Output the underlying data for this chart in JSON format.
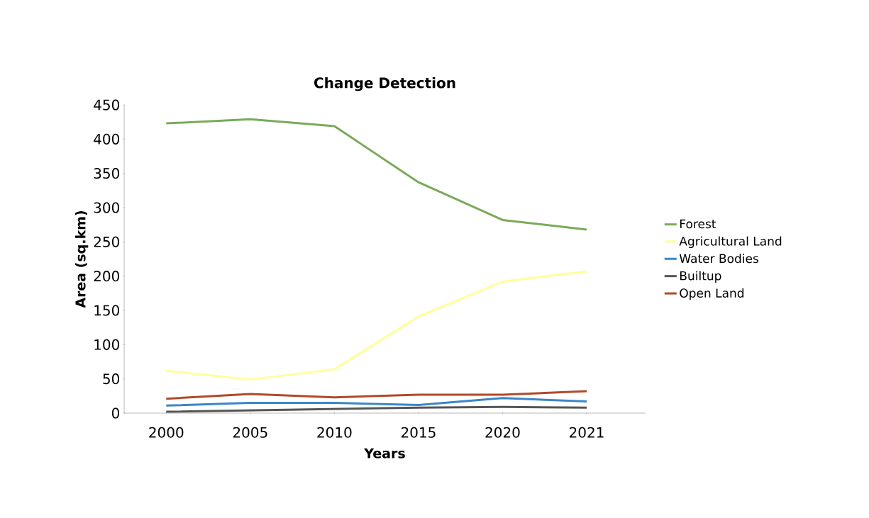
{
  "chart_data": {
    "type": "line",
    "title": "Change Detection",
    "xlabel": "Years",
    "ylabel": "Area (sq.km)",
    "categories": [
      "2000",
      "2005",
      "2010",
      "2015",
      "2020",
      "2021"
    ],
    "series": [
      {
        "name": "Forest",
        "color": "#7aaa5a",
        "values": [
          423,
          429,
          419,
          337,
          282,
          268
        ]
      },
      {
        "name": "Agricultural Land",
        "color": "#ffff99",
        "values": [
          62,
          49,
          64,
          141,
          192,
          207
        ]
      },
      {
        "name": "Water Bodies",
        "color": "#3a86c8",
        "values": [
          11,
          15,
          15,
          12,
          22,
          17
        ]
      },
      {
        "name": "Builtup",
        "color": "#555555",
        "values": [
          2,
          4,
          6,
          8,
          9,
          8
        ]
      },
      {
        "name": "Open Land",
        "color": "#b04a2a",
        "values": [
          21,
          28,
          23,
          27,
          27,
          32
        ]
      }
    ],
    "ylim": [
      0,
      450
    ],
    "yticks": [
      0,
      50,
      100,
      150,
      200,
      250,
      300,
      350,
      400,
      450
    ],
    "grid": false,
    "legend": "right",
    "marker": "none",
    "line_style": "solid"
  }
}
